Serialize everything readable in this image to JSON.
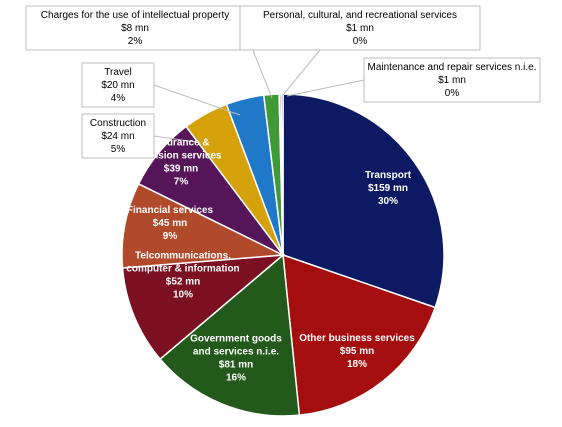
{
  "chart_data": {
    "type": "pie",
    "start_angle_deg": 0,
    "direction": "clockwise",
    "slices": [
      {
        "name": "Transport",
        "value_text": "$159 mn",
        "percent_text": "30%",
        "value": 159,
        "color": "#0d1a63",
        "label_style": "inside"
      },
      {
        "name": "Other business services",
        "value_text": "$95 mn",
        "percent_text": "18%",
        "value": 95,
        "color": "#a50e0e",
        "label_style": "inside"
      },
      {
        "name": "Government goods and services n.i.e.",
        "value_text": "$81 mn",
        "percent_text": "16%",
        "value": 81,
        "color": "#235a1b",
        "label_style": "inside"
      },
      {
        "name": "Telcommunications, computer & information",
        "value_text": "$52 mn",
        "percent_text": "10%",
        "value": 52,
        "color": "#7b1022",
        "label_style": "inside"
      },
      {
        "name": "Financial services",
        "value_text": "$45 mn",
        "percent_text": "9%",
        "value": 45,
        "color": "#b14a2a",
        "label_style": "inside"
      },
      {
        "name": "Insurance & pension services",
        "value_text": "$39 mn",
        "percent_text": "7%",
        "value": 39,
        "color": "#561459",
        "label_style": "inside"
      },
      {
        "name": "Construction",
        "value_text": "$24 mn",
        "percent_text": "5%",
        "value": 24,
        "color": "#d4a10b",
        "label_style": "callout"
      },
      {
        "name": "Travel",
        "value_text": "$20 mn",
        "percent_text": "4%",
        "value": 20,
        "color": "#1f78c8",
        "label_style": "callout"
      },
      {
        "name": "Charges for the use of intellectual property",
        "value_text": "$8 mn",
        "percent_text": "2%",
        "value": 8,
        "color": "#3f9a36",
        "label_style": "callout"
      },
      {
        "name": "Personal, cultural, and recreational services",
        "value_text": "$1 mn",
        "percent_text": "0%",
        "value": 1,
        "color": "#5b6f86",
        "label_style": "callout"
      },
      {
        "name": "Maintenance and repair services n.i.e.",
        "value_text": "$1 mn",
        "percent_text": "0%",
        "value": 1,
        "color": "#6e2b8a",
        "label_style": "callout"
      }
    ]
  }
}
